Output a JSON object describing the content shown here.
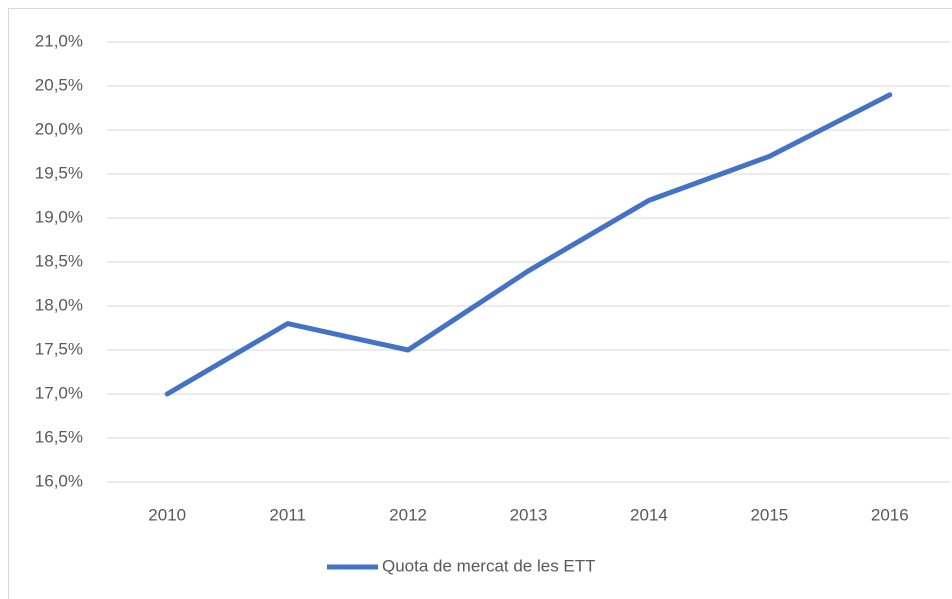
{
  "chart_data": {
    "type": "line",
    "categories": [
      "2010",
      "2011",
      "2012",
      "2013",
      "2014",
      "2015",
      "2016"
    ],
    "series": [
      {
        "name": "Quota de mercat de les ETT",
        "color": "#4472c4",
        "values": [
          17.0,
          17.8,
          17.5,
          18.4,
          19.2,
          19.7,
          20.4
        ]
      }
    ],
    "ylim": [
      16.0,
      21.0
    ],
    "yticks": [
      {
        "value": 16.0,
        "label": "16,0%"
      },
      {
        "value": 16.5,
        "label": "16,5%"
      },
      {
        "value": 17.0,
        "label": "17,0%"
      },
      {
        "value": 17.5,
        "label": "17,5%"
      },
      {
        "value": 18.0,
        "label": "18,0%"
      },
      {
        "value": 18.5,
        "label": "18,5%"
      },
      {
        "value": 19.0,
        "label": "19,0%"
      },
      {
        "value": 19.5,
        "label": "19,5%"
      },
      {
        "value": 20.0,
        "label": "20,0%"
      },
      {
        "value": 20.5,
        "label": "20,5%"
      },
      {
        "value": 21.0,
        "label": "21,0%"
      }
    ],
    "grid": true,
    "legend": "bottom"
  }
}
